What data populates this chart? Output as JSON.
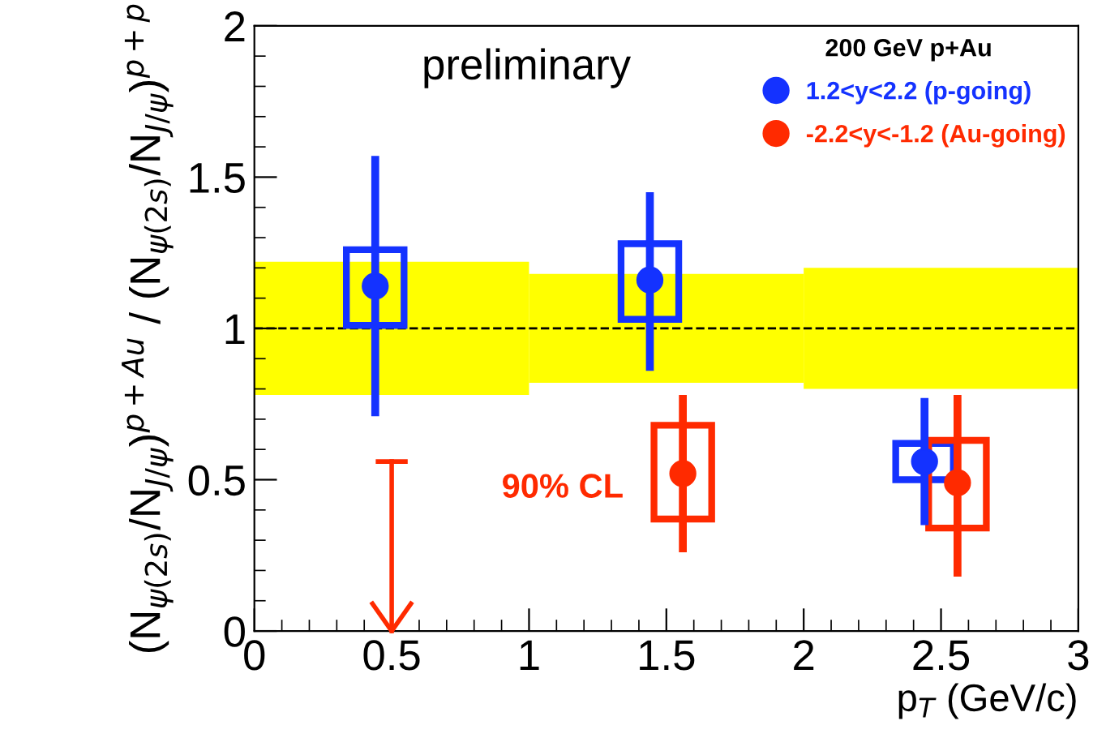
{
  "chart_data": {
    "type": "scatter",
    "ylabel": "(N$_{ψ(2s)}$/N$_{J/ψ}$)$^{p+Au}$ / (N$_{ψ(2s)}$/N$_{J/ψ}$)$^{p+p}$",
    "xlabel": "p$_{T}$ (GeV/c)",
    "legend_title": "200 GeV p+Au",
    "legend": "top right",
    "marker": "circle",
    "grid": false,
    "xlim": [
      0,
      3
    ],
    "xticks": [
      0,
      0.5,
      1,
      1.5,
      2,
      2.5,
      3
    ],
    "ylim": [
      0,
      2
    ],
    "yticks": [
      0,
      0.5,
      1,
      1.5,
      2
    ],
    "ref_lines": [
      {
        "axis": "y",
        "value": 1,
        "color": "#000000",
        "line_style": "dashed"
      }
    ],
    "annotations": [
      "preliminary",
      "90% CL"
    ],
    "series": [
      {
        "type": "bar",
        "color": "#ffff00",
        "x": [
          0.5,
          1.5,
          2.5
        ],
        "base": [
          0.78,
          0.82,
          0.8
        ],
        "values": [
          0.44,
          0.36,
          0.4
        ]
      },
      {
        "type": "bar",
        "color": "#1432ff",
        "x": [
          0.44,
          1.44,
          2.44
        ],
        "base": [
          1.01,
          1.03,
          0.5
        ],
        "values": [
          0.25,
          0.25,
          0.12
        ]
      },
      {
        "type": "bar",
        "color": "#ff2a00",
        "x": [
          1.56,
          2.56
        ],
        "base": [
          0.37,
          0.34
        ],
        "values": [
          0.31,
          0.29
        ]
      },
      {
        "name": "1.2<y<2.2 (p-going)",
        "color": "#1432ff",
        "x": [
          0.44,
          1.44,
          2.44
        ],
        "values": [
          1.14,
          1.16,
          0.56
        ],
        "errors": [
          [
            0.71,
            1.57
          ],
          [
            0.86,
            1.45
          ],
          [
            0.35,
            0.77
          ]
        ]
      },
      {
        "name": "-2.2<y<-1.2 (Au-going)",
        "color": "#ff2a00",
        "x": [
          1.56,
          2.56
        ],
        "values": [
          0.52,
          0.49
        ],
        "errors": [
          [
            0.26,
            0.78
          ],
          [
            0.18,
            0.78
          ]
        ]
      },
      {
        "type": "line",
        "color": "#ff2a00",
        "x": [
          0.5,
          0.5
        ],
        "values": [
          0.56,
          0
        ],
        "marker": "none"
      }
    ]
  }
}
